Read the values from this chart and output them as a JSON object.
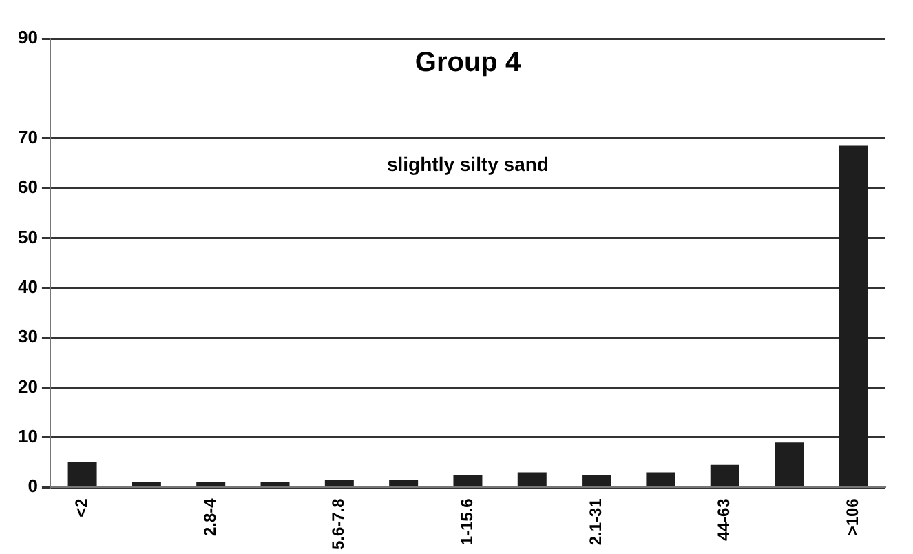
{
  "chart_data": {
    "type": "bar",
    "title": "Group 4",
    "annotations": [
      "slightly silty sand"
    ],
    "categories": [
      "<2",
      null,
      "2.8-4",
      null,
      "5.6-7.8",
      null,
      "1-15.6",
      null,
      "2.1-31",
      null,
      "44-63",
      null,
      ">106"
    ],
    "values": [
      5,
      1,
      1,
      1,
      1.5,
      1.5,
      2.5,
      3,
      2.5,
      3,
      4.5,
      9,
      68.5
    ],
    "color": "#1e1e1e",
    "ylim": [
      0,
      90
    ],
    "yticks": [
      0,
      10,
      20,
      30,
      40,
      50,
      60,
      70,
      90
    ],
    "grid": "y",
    "legend": false
  }
}
